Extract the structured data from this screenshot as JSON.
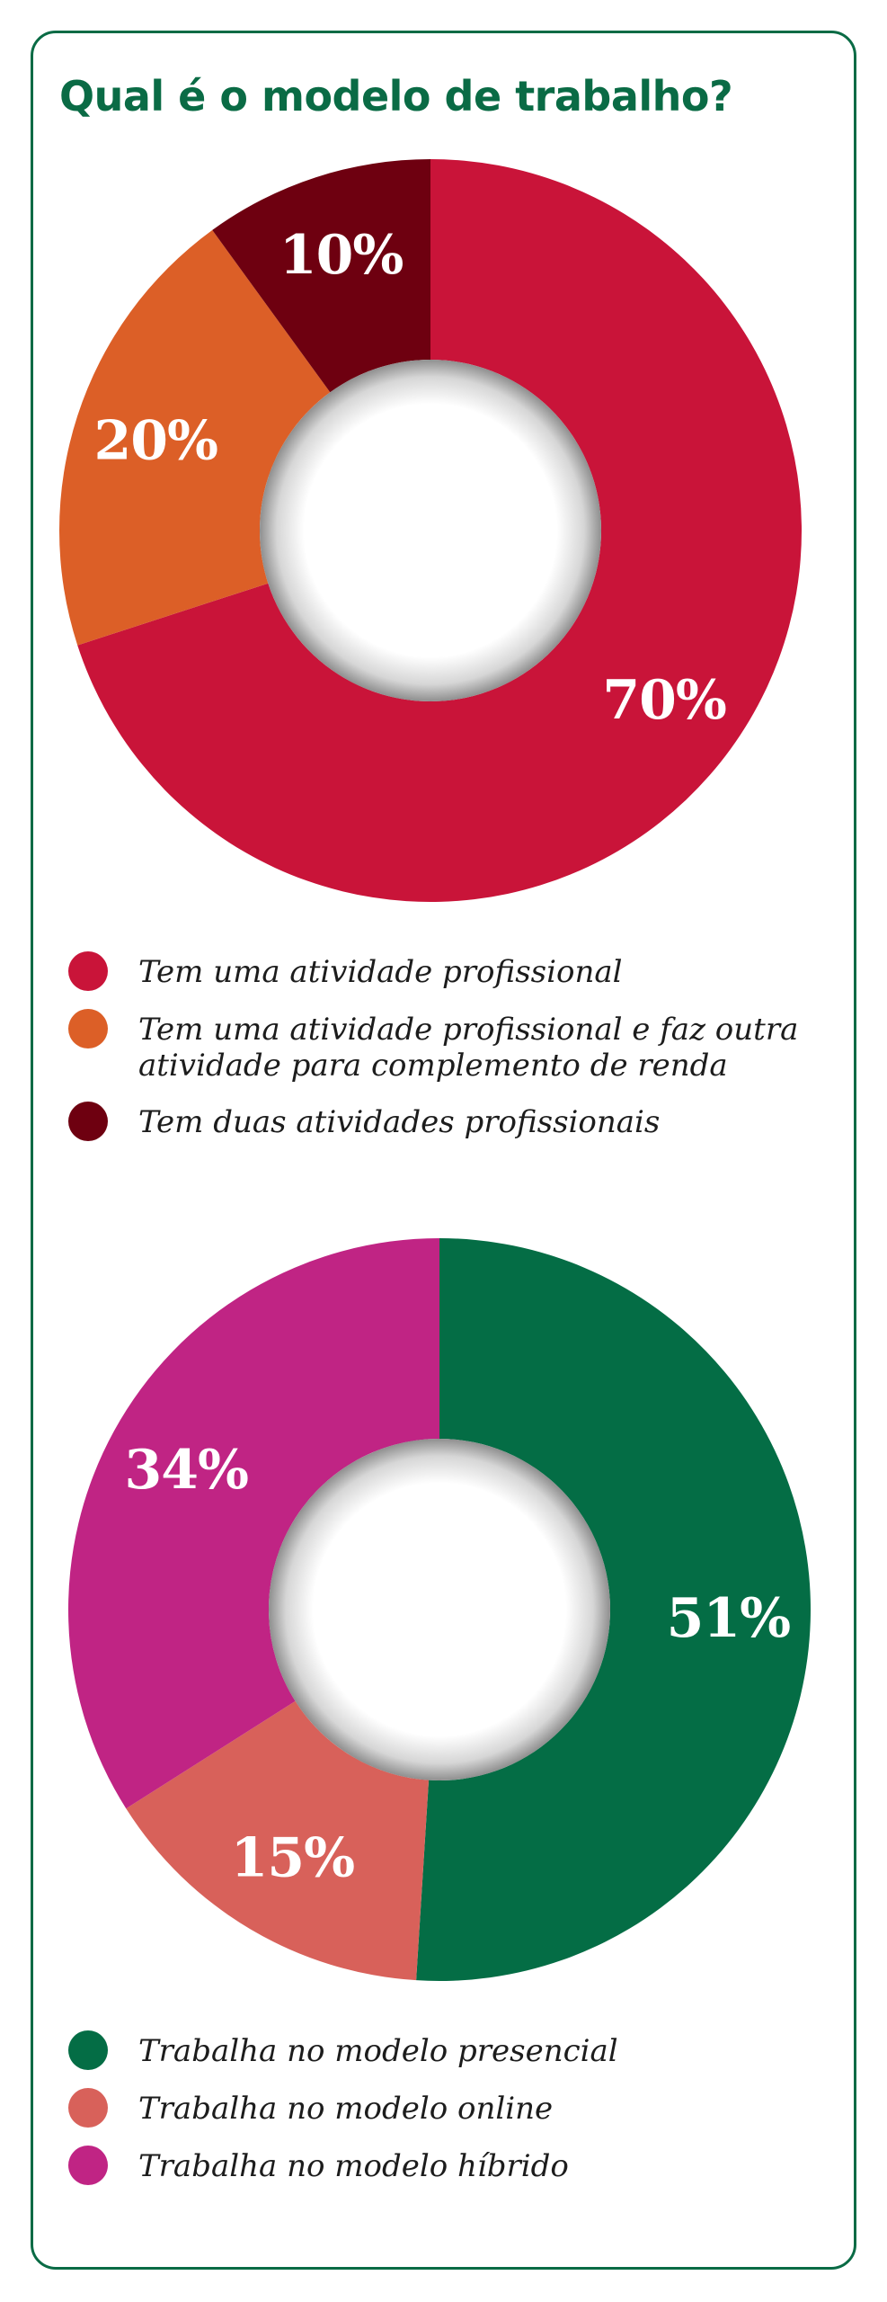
{
  "title": "Qual é o modelo de trabalho?",
  "chart_data": [
    {
      "type": "pie",
      "title": "Qual é o modelo de trabalho?",
      "donut": true,
      "categories": [
        "Tem uma atividade profissional",
        "Tem uma atividade profissional e faz outra atividade para complemento de renda",
        "Tem duas atividades profissionais"
      ],
      "values": [
        70,
        20,
        10
      ],
      "labels": [
        "70%",
        "20%",
        "10%"
      ],
      "colors": [
        "#c91439",
        "#dc5f27",
        "#6e0010"
      ],
      "legend": "bottom"
    },
    {
      "type": "pie",
      "donut": true,
      "categories": [
        "Trabalha no modelo presencial",
        "Trabalha no modelo online",
        "Trabalha no modelo híbrido"
      ],
      "values": [
        51,
        15,
        34
      ],
      "labels": [
        "51%",
        "15%",
        "34%"
      ],
      "colors": [
        "#046d45",
        "#d8615a",
        "#c02484"
      ],
      "legend": "bottom"
    }
  ]
}
